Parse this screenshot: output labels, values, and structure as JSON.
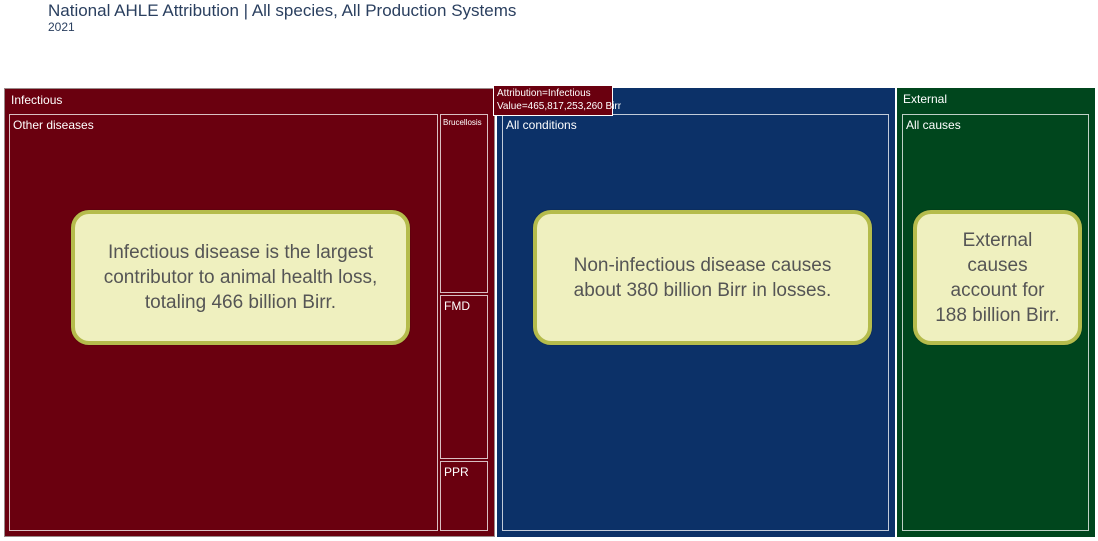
{
  "header": {
    "title": "National AHLE Attribution | All species, All Production Systems",
    "subtitle": "2021"
  },
  "chart_data": {
    "type": "treemap",
    "title": "National AHLE Attribution | All species, All Production Systems",
    "subtitle": "2021",
    "units": "Birr",
    "groups": [
      {
        "name": "Infectious",
        "value": 465817253260,
        "color": "#6a000f",
        "children": [
          {
            "name": "Other diseases"
          },
          {
            "name": "Brucellosis"
          },
          {
            "name": "FMD"
          },
          {
            "name": "PPR"
          }
        ]
      },
      {
        "name": "Non-infectious",
        "value": 380000000000,
        "color": "#0c3168",
        "children": [
          {
            "name": "All conditions"
          }
        ]
      },
      {
        "name": "External",
        "value": 188000000000,
        "color": "#00461d",
        "children": [
          {
            "name": "All causes"
          }
        ]
      }
    ]
  },
  "tooltip": {
    "line1": "Attribution=Infectious",
    "line2": "Value=465,817,253,260 Birr"
  },
  "callouts": {
    "infectious": "Infectious disease is the largest contributor to animal health loss, totaling 466 billion Birr.",
    "noninfectious": "Non-infectious disease causes about 380 billion Birr in losses.",
    "external": "External causes account for 188 billion Birr."
  }
}
